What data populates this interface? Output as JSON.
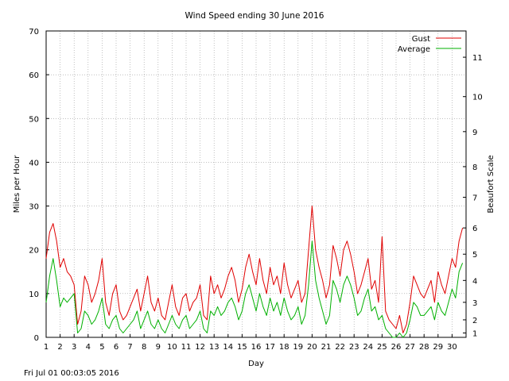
{
  "chart_data": {
    "type": "line",
    "title": "Wind Speed ending 30 June 2016",
    "xlabel": "Day",
    "ylabel": "Miles per Hour",
    "y2label": "Beaufort Scale",
    "xlim": [
      1,
      31
    ],
    "ylim": [
      0,
      70
    ],
    "grid": true,
    "legend_position": "top-right",
    "x_ticks": [
      1,
      2,
      3,
      4,
      5,
      6,
      7,
      8,
      9,
      10,
      11,
      12,
      13,
      14,
      15,
      16,
      17,
      18,
      19,
      20,
      21,
      22,
      23,
      24,
      25,
      26,
      27,
      28,
      29,
      30
    ],
    "y_ticks": [
      0,
      10,
      20,
      30,
      40,
      50,
      60,
      70
    ],
    "y2_ticks": [
      {
        "label": "1",
        "mph": 1.0
      },
      {
        "label": "2",
        "mph": 4.0
      },
      {
        "label": "3",
        "mph": 8.0
      },
      {
        "label": "4",
        "mph": 13.0
      },
      {
        "label": "5",
        "mph": 19.0
      },
      {
        "label": "6",
        "mph": 25.0
      },
      {
        "label": "7",
        "mph": 32.0
      },
      {
        "label": "8",
        "mph": 39.0
      },
      {
        "label": "9",
        "mph": 47.0
      },
      {
        "label": "10",
        "mph": 55.0
      },
      {
        "label": "11",
        "mph": 64.0
      }
    ],
    "series": [
      {
        "name": "Gust",
        "color": "#e00000",
        "x": [
          1,
          1.25,
          1.5,
          1.75,
          2,
          2.25,
          2.5,
          2.75,
          3,
          3.25,
          3.5,
          3.75,
          4,
          4.25,
          4.5,
          4.75,
          5,
          5.25,
          5.5,
          5.75,
          6,
          6.25,
          6.5,
          6.75,
          7,
          7.25,
          7.5,
          7.75,
          8,
          8.25,
          8.5,
          8.75,
          9,
          9.25,
          9.5,
          9.75,
          10,
          10.25,
          10.5,
          10.75,
          11,
          11.25,
          11.5,
          11.75,
          12,
          12.25,
          12.5,
          12.75,
          13,
          13.25,
          13.5,
          13.75,
          14,
          14.25,
          14.5,
          14.75,
          15,
          15.25,
          15.5,
          15.75,
          16,
          16.25,
          16.5,
          16.75,
          17,
          17.25,
          17.5,
          17.75,
          18,
          18.25,
          18.5,
          18.75,
          19,
          19.25,
          19.5,
          19.75,
          20,
          20.25,
          20.5,
          20.75,
          21,
          21.25,
          21.5,
          21.75,
          22,
          22.25,
          22.5,
          22.75,
          23,
          23.25,
          23.5,
          23.75,
          24,
          24.25,
          24.5,
          24.75,
          25,
          25.25,
          25.5,
          25.75,
          26,
          26.25,
          26.5,
          26.75,
          27,
          27.25,
          27.5,
          27.75,
          28,
          28.25,
          28.5,
          28.75,
          29,
          29.25,
          29.5,
          29.75,
          30,
          30.25,
          30.5,
          30.75
        ],
        "values": [
          18,
          24,
          26,
          22,
          16,
          18,
          15,
          14,
          12,
          3,
          6,
          14,
          12,
          8,
          10,
          13,
          18,
          8,
          5,
          10,
          12,
          6,
          4,
          5,
          7,
          9,
          11,
          6,
          10,
          14,
          8,
          6,
          9,
          5,
          4,
          8,
          12,
          7,
          5,
          9,
          10,
          6,
          8,
          9,
          12,
          5,
          4,
          14,
          10,
          12,
          9,
          11,
          14,
          16,
          13,
          8,
          11,
          16,
          19,
          15,
          12,
          18,
          13,
          10,
          16,
          12,
          14,
          10,
          17,
          12,
          9,
          11,
          13,
          8,
          10,
          20,
          30,
          20,
          16,
          13,
          9,
          12,
          21,
          18,
          14,
          20,
          22,
          19,
          15,
          10,
          12,
          15,
          18,
          11,
          13,
          8,
          23,
          6,
          4,
          3,
          2,
          5,
          1,
          3,
          8,
          14,
          12,
          10,
          9,
          11,
          13,
          8,
          15,
          12,
          10,
          14,
          18,
          16,
          22,
          25
        ]
      },
      {
        "name": "Average",
        "color": "#00b000",
        "x": [
          1,
          1.25,
          1.5,
          1.75,
          2,
          2.25,
          2.5,
          2.75,
          3,
          3.25,
          3.5,
          3.75,
          4,
          4.25,
          4.5,
          4.75,
          5,
          5.25,
          5.5,
          5.75,
          6,
          6.25,
          6.5,
          6.75,
          7,
          7.25,
          7.5,
          7.75,
          8,
          8.25,
          8.5,
          8.75,
          9,
          9.25,
          9.5,
          9.75,
          10,
          10.25,
          10.5,
          10.75,
          11,
          11.25,
          11.5,
          11.75,
          12,
          12.25,
          12.5,
          12.75,
          13,
          13.25,
          13.5,
          13.75,
          14,
          14.25,
          14.5,
          14.75,
          15,
          15.25,
          15.5,
          15.75,
          16,
          16.25,
          16.5,
          16.75,
          17,
          17.25,
          17.5,
          17.75,
          18,
          18.25,
          18.5,
          18.75,
          19,
          19.25,
          19.5,
          19.75,
          20,
          20.25,
          20.5,
          20.75,
          21,
          21.25,
          21.5,
          21.75,
          22,
          22.25,
          22.5,
          22.75,
          23,
          23.25,
          23.5,
          23.75,
          24,
          24.25,
          24.5,
          24.75,
          25,
          25.25,
          25.5,
          25.75,
          26,
          26.25,
          26.5,
          26.75,
          27,
          27.25,
          27.5,
          27.75,
          28,
          28.25,
          28.5,
          28.75,
          29,
          29.25,
          29.5,
          29.75,
          30,
          30.25,
          30.5,
          30.75
        ],
        "values": [
          8,
          14,
          18,
          13,
          7,
          9,
          8,
          9,
          10,
          1,
          2,
          6,
          5,
          3,
          4,
          6,
          9,
          3,
          2,
          4,
          5,
          2,
          1,
          2,
          3,
          4,
          6,
          2,
          4,
          6,
          3,
          2,
          4,
          2,
          1,
          3,
          5,
          3,
          2,
          4,
          5,
          2,
          3,
          4,
          6,
          2,
          1,
          6,
          5,
          7,
          5,
          6,
          8,
          9,
          7,
          4,
          6,
          10,
          12,
          9,
          6,
          10,
          7,
          5,
          9,
          6,
          8,
          5,
          9,
          6,
          4,
          5,
          7,
          3,
          5,
          12,
          22,
          13,
          9,
          6,
          3,
          5,
          13,
          11,
          8,
          12,
          14,
          12,
          9,
          5,
          6,
          9,
          11,
          6,
          7,
          4,
          5,
          2,
          1,
          0,
          0,
          1,
          0,
          1,
          4,
          8,
          7,
          5,
          5,
          6,
          7,
          4,
          8,
          6,
          5,
          8,
          11,
          9,
          15,
          17
        ]
      }
    ]
  },
  "footer": {
    "timestamp": "Fri Jul 01 00:03:05 2016"
  }
}
